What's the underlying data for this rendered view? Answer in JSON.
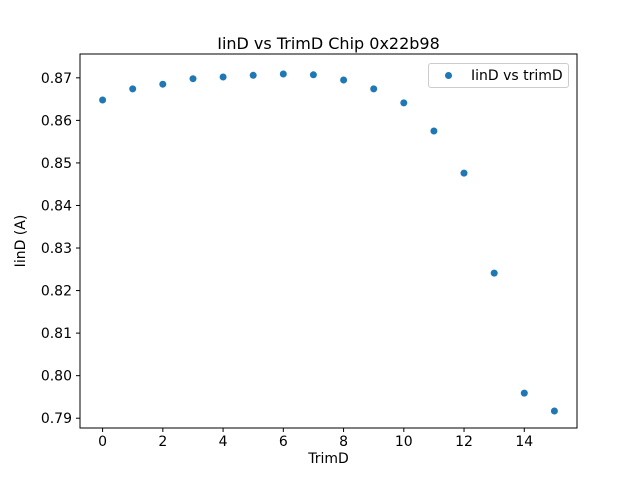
{
  "figure": {
    "title": "IinD vs TrimD Chip 0x22b98",
    "xlabel": "TrimD",
    "ylabel": "IinD (A)",
    "legend": {
      "label": "IinD vs trimD"
    },
    "colors": {
      "marker": "#1f77b4",
      "spine": "#000000",
      "legend_border": "#cccccc",
      "background": "#ffffff"
    }
  },
  "chart_data": {
    "type": "scatter",
    "title": "IinD vs TrimD Chip 0x22b98",
    "xlabel": "TrimD",
    "ylabel": "IinD (A)",
    "legend": [
      "IinD vs trimD"
    ],
    "legend_position": "upper right",
    "grid": false,
    "marker_color": "#1f77b4",
    "x": [
      0,
      1,
      2,
      3,
      4,
      5,
      6,
      7,
      8,
      9,
      10,
      11,
      12,
      13,
      14,
      15
    ],
    "y": [
      0.8648,
      0.8674,
      0.8685,
      0.8698,
      0.8702,
      0.8706,
      0.8709,
      0.8707,
      0.8695,
      0.8674,
      0.8641,
      0.8575,
      0.8476,
      0.8241,
      0.7959,
      0.7917
    ],
    "xlim": [
      -0.75,
      15.75
    ],
    "ylim": [
      0.7877,
      0.8756
    ],
    "xticks": [
      0,
      2,
      4,
      6,
      8,
      10,
      12,
      14
    ],
    "xtick_labels": [
      "0",
      "2",
      "4",
      "6",
      "8",
      "10",
      "12",
      "14"
    ],
    "yticks": [
      0.79,
      0.8,
      0.81,
      0.82,
      0.83,
      0.84,
      0.85,
      0.86,
      0.87
    ],
    "ytick_labels": [
      "0.79",
      "0.80",
      "0.81",
      "0.82",
      "0.83",
      "0.84",
      "0.85",
      "0.86",
      "0.87"
    ]
  }
}
